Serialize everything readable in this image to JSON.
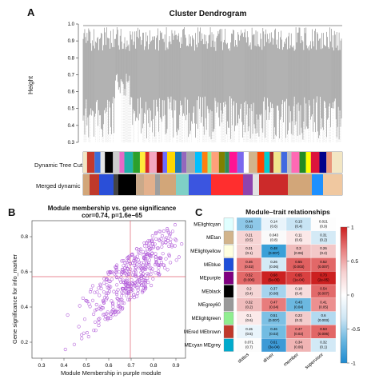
{
  "panel_a": {
    "letter": "A",
    "title": "Cluster Dendrogram",
    "ylabel": "Height",
    "yticks": [
      "1.0",
      "0.9",
      "0.8",
      "0.7",
      "0.6",
      "0.5",
      "0.4",
      "0.3"
    ],
    "row1_label": "Dynamic Tree Cut",
    "row2_label": "Merged dynamic",
    "bar_colors_1": [
      "#f3e6c3",
      "#c43a2c",
      "#3b6fd9",
      "#e5e5e5",
      "#000000",
      "#cccccc",
      "#e66ac6",
      "#20b2aa",
      "#2ca02c",
      "#ffeb3b",
      "#d62728",
      "#f4a6c0",
      "#8b0000",
      "#6a6aff",
      "#ffd700",
      "#1f77b4",
      "#9467bd",
      "#a9a9a9",
      "#00bfff",
      "#ff7f0e",
      "#90ee90",
      "#ffa07a",
      "#808000",
      "#2e8b57",
      "#ff1493",
      "#7b68ee",
      "#ffffff",
      "#d2b48c",
      "#ff4500",
      "#00ced1",
      "#a52a2a",
      "#f0e68c",
      "#4169e1",
      "#c0c0c0",
      "#ff69b4",
      "#228b22",
      "#ffff00",
      "#dc143c",
      "#00008b",
      "#e9967a"
    ],
    "bar_colors_2": [
      "#d2a679",
      "#c0392b",
      "#2a4fd8",
      "#444444",
      "#000000",
      "#c9a98a",
      "#e3b08c",
      "#9e9e9e",
      "#d2a679",
      "#7fd0c6",
      "#3b55e0",
      "#ff2e2e",
      "#8e44ad",
      "#e2e2e2",
      "#cc2a2a",
      "#d2a679",
      "#1e90ff",
      "#f0c8a0"
    ]
  },
  "panel_b": {
    "letter": "B",
    "title": "Module membership vs. gene significance",
    "subtitle": "cor=0.74, p=1.6e−65",
    "xlabel": "Module Membership in purple module",
    "ylabel": "Gene significance for  info_marker",
    "xticks": [
      "0.3",
      "0.4",
      "0.5",
      "0.6",
      "0.7",
      "0.8",
      "0.9"
    ],
    "yticks": [
      "0.2",
      "0.4",
      "0.6",
      "0.8"
    ]
  },
  "panel_c": {
    "letter": "C",
    "title": "Module–trait relationships",
    "modules": [
      "MElightcyan",
      "MEtan",
      "MElightyellow",
      "MEblue",
      "MEpurple",
      "MEblack",
      "MEgrey60",
      "MElightgreen",
      "MEred MEbrown",
      "MEcyan MEgrey"
    ],
    "module_colors": [
      "#e0ffff",
      "#d2b48c",
      "#ffffe0",
      "#1f4fd8",
      "#800080",
      "#000000",
      "#999999",
      "#90ee90",
      "#c0392b",
      "#00aacc"
    ],
    "traits": [
      "status",
      "driver",
      "member",
      "supervisor"
    ],
    "cells": [
      [
        "0.44\n(0.1)",
        "0.14\n(0.6)",
        "0.13\n(0.4)",
        "0.021\n(0.9)"
      ],
      [
        "0.21\n(0.5)",
        "0.043\n(0.8)",
        "0.11\n(0.6)",
        "0.31\n(0.2)"
      ],
      [
        "0.21\n(0.1)",
        "0.48\n(0.007)",
        "0.3\n(0.06)",
        "0.26\n(0.2)"
      ],
      [
        "0.46\n(0.02)",
        "0.26\n(0.06)",
        "0.55\n(0.003)",
        "0.52\n(0.007)"
      ],
      [
        "0.52\n(0.006)",
        "0.68\n(5e-05)",
        "0.65\n(1e-04)",
        "0.73\n(2e-05)"
      ],
      [
        "0.2\n(0.4)",
        "0.37\n(0.08)",
        "0.18\n(0.4)",
        "0.54\n(0.007)"
      ],
      [
        "0.32\n(0.2)",
        "0.47\n(0.04)",
        "0.43\n(0.04)",
        "0.41\n(0.05)"
      ],
      [
        "0.1\n(0.6)",
        "0.51\n(0.007)",
        "0.23\n(0.3)",
        "0.6\n(0.003)"
      ],
      [
        "0.15\n(0.5)",
        "0.46\n(0.02)",
        "0.47\n(0.02)",
        "0.53\n(0.006)"
      ],
      [
        "0.071\n(0.7)",
        "0.61\n(3e-04)",
        "0.34\n(0.06)",
        "0.32\n(0.1)"
      ]
    ],
    "cell_colors": [
      [
        "#8ec8e8",
        "#e9f4fb",
        "#c8e4f4",
        "#fdfdfd"
      ],
      [
        "#f6d4d4",
        "#fafafa",
        "#fbe8e8",
        "#d4eaf6"
      ],
      [
        "#f5d2d2",
        "#3aa0d8",
        "#f0bcbc",
        "#f3c8c8"
      ],
      [
        "#e87b7b",
        "#d4eaf6",
        "#e06060",
        "#e26868"
      ],
      [
        "#e26868",
        "#cc2222",
        "#d94040",
        "#cc2020"
      ],
      [
        "#f5d6d6",
        "#a6d4ee",
        "#f7dcdc",
        "#e26a6a"
      ],
      [
        "#f0bcbc",
        "#e87c7c",
        "#6cb8e0",
        "#ec9090"
      ],
      [
        "#fbeaea",
        "#7cc0e4",
        "#f3cccc",
        "#b3daf0"
      ],
      [
        "#e9f4fb",
        "#72bce2",
        "#e88080",
        "#e26666"
      ],
      [
        "#fcfcfc",
        "#3d9ad6",
        "#f0b4b4",
        "#d2e9f6"
      ]
    ],
    "legend_ticks": [
      "1",
      "0.5",
      "0",
      "-0.5",
      "-1"
    ]
  }
}
